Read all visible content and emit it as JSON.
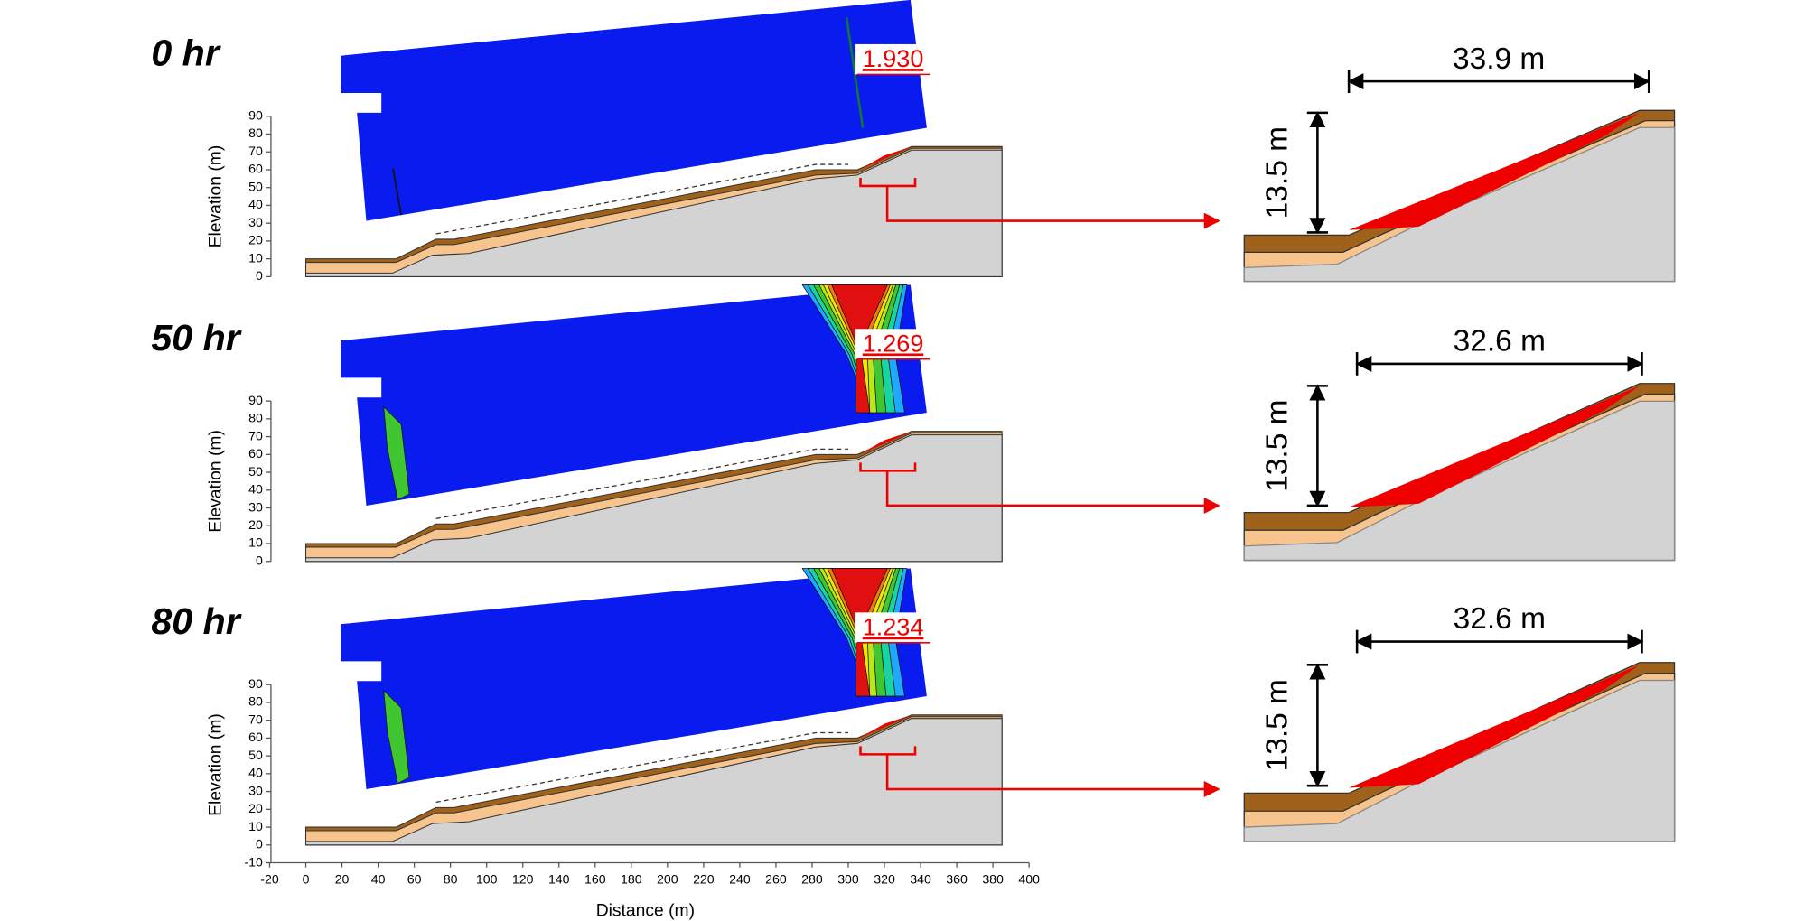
{
  "panels": [
    {
      "time": "0 hr",
      "factor_of_safety": "1.930",
      "width": "33.9 m",
      "height": "13.5 m",
      "yticks": [
        0,
        10,
        20,
        30,
        40,
        50,
        60,
        70,
        80,
        90
      ]
    },
    {
      "time": "50 hr",
      "factor_of_safety": "1.269",
      "width": "32.6 m",
      "height": "13.5 m",
      "yticks": [
        0,
        10,
        20,
        30,
        40,
        50,
        60,
        70,
        80,
        90
      ]
    },
    {
      "time": "80 hr",
      "factor_of_safety": "1.234",
      "width": "32.6 m",
      "height": "13.5 m",
      "yticks": [
        -10,
        0,
        10,
        20,
        30,
        40,
        50,
        60,
        70,
        80,
        90
      ]
    }
  ],
  "y_label": "Elevation (m)",
  "x_axis": {
    "label": "Distance (m)",
    "ticks": [
      -20,
      0,
      20,
      40,
      60,
      80,
      100,
      120,
      140,
      160,
      180,
      200,
      220,
      240,
      260,
      280,
      300,
      320,
      340,
      360,
      380,
      400
    ]
  }
}
